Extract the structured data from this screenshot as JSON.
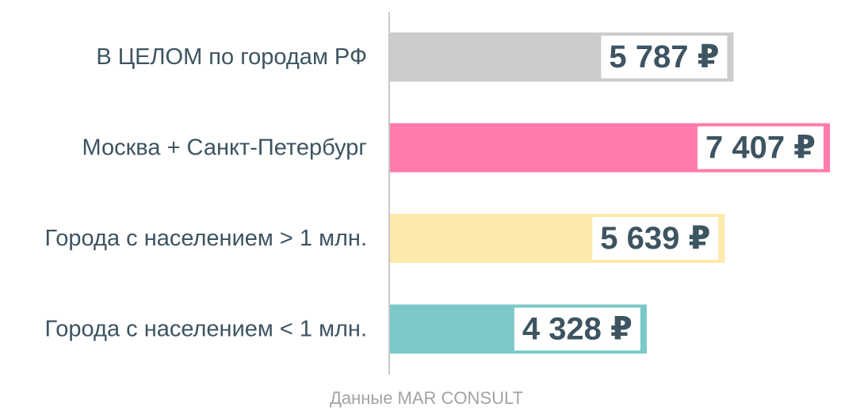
{
  "chart_data": {
    "type": "bar",
    "orientation": "horizontal",
    "categories": [
      "В ЦЕЛОМ по городам РФ",
      "Москва + Санкт-Петербург",
      "Города с населением > 1 млн.",
      "Города с населением < 1 млн."
    ],
    "values": [
      5787,
      7407,
      5639,
      4328
    ],
    "value_labels": [
      "5 787 ₽",
      "7 407 ₽",
      "5 639 ₽",
      "4 328 ₽"
    ],
    "colors": [
      "#cccccc",
      "#ff7bac",
      "#fde9aa",
      "#7ac8c8"
    ],
    "xlim": [
      0,
      7500
    ],
    "grid": false,
    "source": "Данные MAR CONSULT"
  }
}
